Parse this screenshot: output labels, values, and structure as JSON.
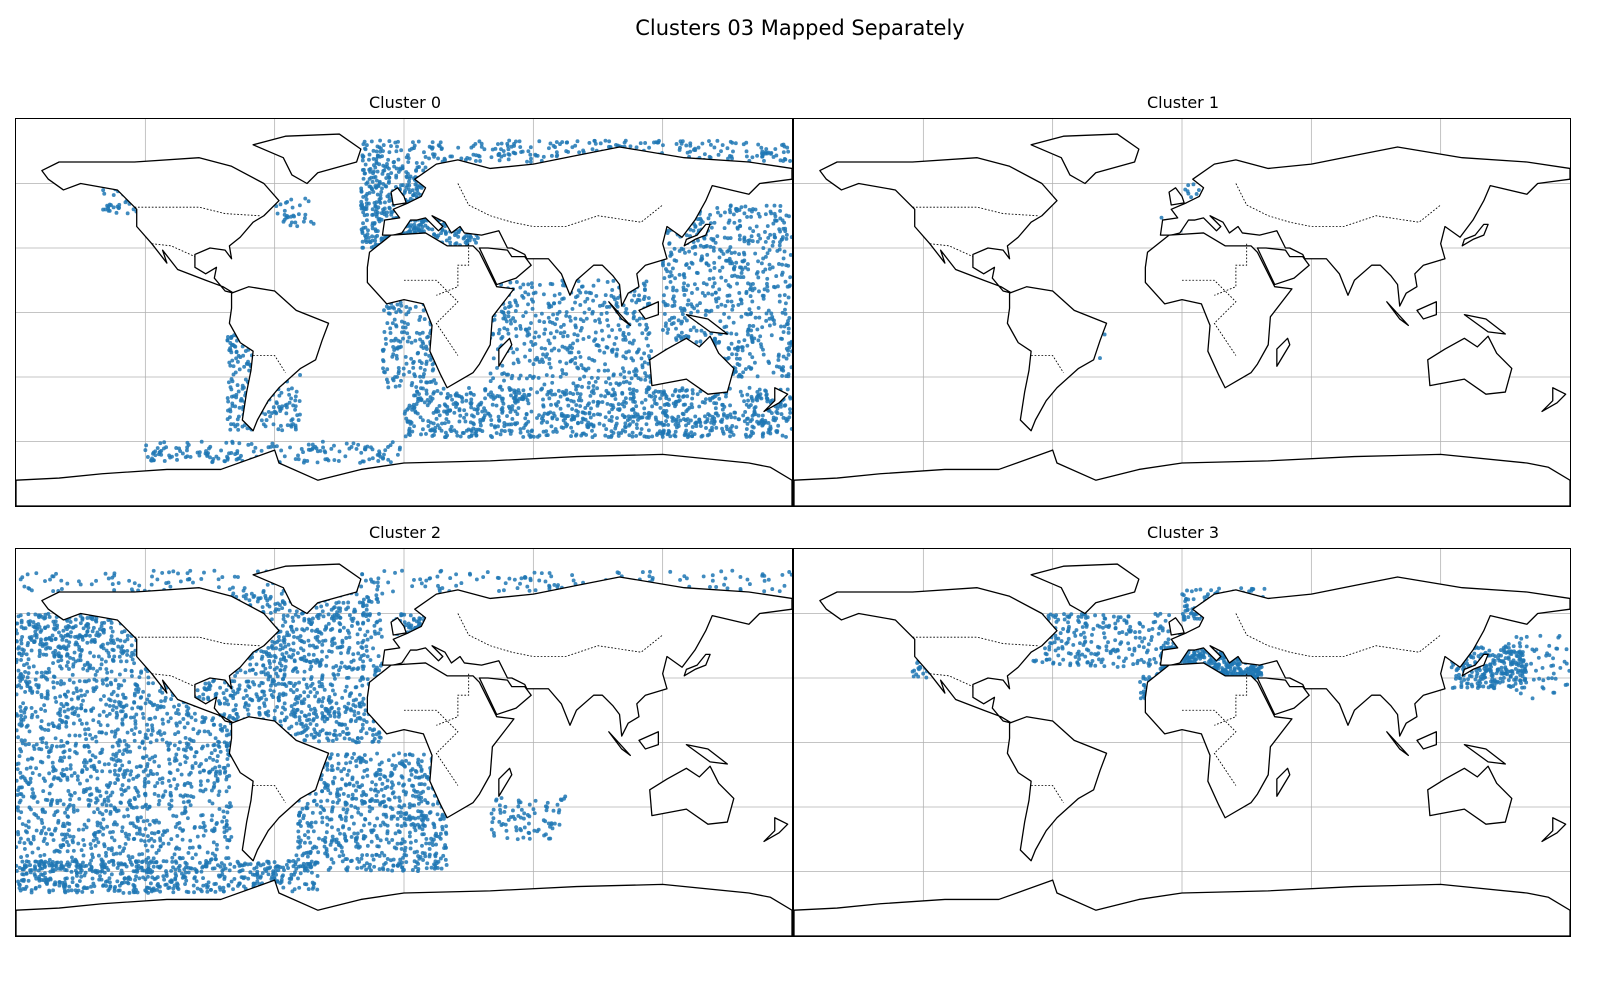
{
  "figure": {
    "title": "Clusters 03 Mapped Separately"
  },
  "colors": {
    "points": "#1f77b4",
    "coast": "#000000",
    "grid": "#b0b0b0"
  },
  "panels": [
    {
      "title": "Cluster 0",
      "regions": [
        {
          "note": "southern ocean belt",
          "lon": [
            0,
            180
          ],
          "lat": [
            -58,
            -35
          ],
          "n": 900
        },
        {
          "note": "indian ocean",
          "lon": [
            40,
            115
          ],
          "lat": [
            -35,
            15
          ],
          "n": 450
        },
        {
          "note": "west pacific",
          "lon": [
            120,
            180
          ],
          "lat": [
            -30,
            50
          ],
          "n": 650
        },
        {
          "note": "north atlantic east",
          "lon": [
            -20,
            10
          ],
          "lat": [
            30,
            70
          ],
          "n": 350
        },
        {
          "note": "mediterranean",
          "lon": [
            -5,
            35
          ],
          "lat": [
            31,
            44
          ],
          "n": 180
        },
        {
          "note": "arctic",
          "lon": [
            -20,
            180
          ],
          "lat": [
            70,
            80
          ],
          "n": 300
        },
        {
          "note": "south atlantic east",
          "lon": [
            -10,
            15
          ],
          "lat": [
            -35,
            5
          ],
          "n": 160
        },
        {
          "note": "chile coast",
          "lon": [
            -82,
            -70
          ],
          "lat": [
            -55,
            -10
          ],
          "n": 120
        },
        {
          "note": "argentina coast",
          "lon": [
            -68,
            -48
          ],
          "lat": [
            -55,
            -20
          ],
          "n": 110
        },
        {
          "note": "antarctic coast",
          "lon": [
            -120,
            0
          ],
          "lat": [
            -70,
            -60
          ],
          "n": 170
        },
        {
          "note": "canada west",
          "lon": [
            -140,
            -120
          ],
          "lat": [
            45,
            60
          ],
          "n": 40
        },
        {
          "note": "newfoundland",
          "lon": [
            -60,
            -40
          ],
          "lat": [
            40,
            55
          ],
          "n": 30
        }
      ]
    },
    {
      "title": "Cluster 1",
      "regions": [
        {
          "note": "baltic / north sea",
          "lon": [
            0,
            25
          ],
          "lat": [
            52,
            60
          ],
          "n": 40
        },
        {
          "note": "brazil",
          "lon": [
            -45,
            -35
          ],
          "lat": [
            -25,
            -10
          ],
          "n": 4
        },
        {
          "note": "biscay",
          "lon": [
            -10,
            0
          ],
          "lat": [
            38,
            46
          ],
          "n": 6
        }
      ]
    },
    {
      "title": "Cluster 2",
      "regions": [
        {
          "note": "east pacific",
          "lon": [
            -180,
            -80
          ],
          "lat": [
            -60,
            40
          ],
          "n": 1400
        },
        {
          "note": "north pacific",
          "lon": [
            -180,
            -120
          ],
          "lat": [
            40,
            60
          ],
          "n": 300
        },
        {
          "note": "north atlantic",
          "lon": [
            -80,
            -10
          ],
          "lat": [
            0,
            70
          ],
          "n": 900
        },
        {
          "note": "south atlantic",
          "lon": [
            -50,
            20
          ],
          "lat": [
            -60,
            -5
          ],
          "n": 700
        },
        {
          "note": "southern ocean",
          "lon": [
            -180,
            -40
          ],
          "lat": [
            -70,
            -55
          ],
          "n": 500
        },
        {
          "note": "arctic",
          "lon": [
            -180,
            180
          ],
          "lat": [
            70,
            80
          ],
          "n": 250
        },
        {
          "note": "indian ocean patch",
          "lon": [
            40,
            75
          ],
          "lat": [
            -45,
            -25
          ],
          "n": 80
        },
        {
          "note": "north sea",
          "lon": [
            -5,
            25
          ],
          "lat": [
            50,
            60
          ],
          "n": 90
        }
      ]
    },
    {
      "title": "Cluster 3",
      "regions": [
        {
          "note": "mediterranean",
          "lon": [
            -10,
            37
          ],
          "lat": [
            30,
            45
          ],
          "n": 550
        },
        {
          "note": "north atlantic",
          "lon": [
            -70,
            0
          ],
          "lat": [
            35,
            60
          ],
          "n": 260
        },
        {
          "note": "nordic",
          "lon": [
            0,
            40
          ],
          "lat": [
            55,
            72
          ],
          "n": 180
        },
        {
          "note": "japan",
          "lon": [
            125,
            160
          ],
          "lat": [
            25,
            45
          ],
          "n": 260
        },
        {
          "note": "nw pacific",
          "lon": [
            150,
            180
          ],
          "lat": [
            20,
            50
          ],
          "n": 60
        },
        {
          "note": "california",
          "lon": [
            -125,
            -115
          ],
          "lat": [
            30,
            40
          ],
          "n": 30
        },
        {
          "note": "canary",
          "lon": [
            -20,
            -10
          ],
          "lat": [
            20,
            32
          ],
          "n": 50
        }
      ]
    }
  ]
}
